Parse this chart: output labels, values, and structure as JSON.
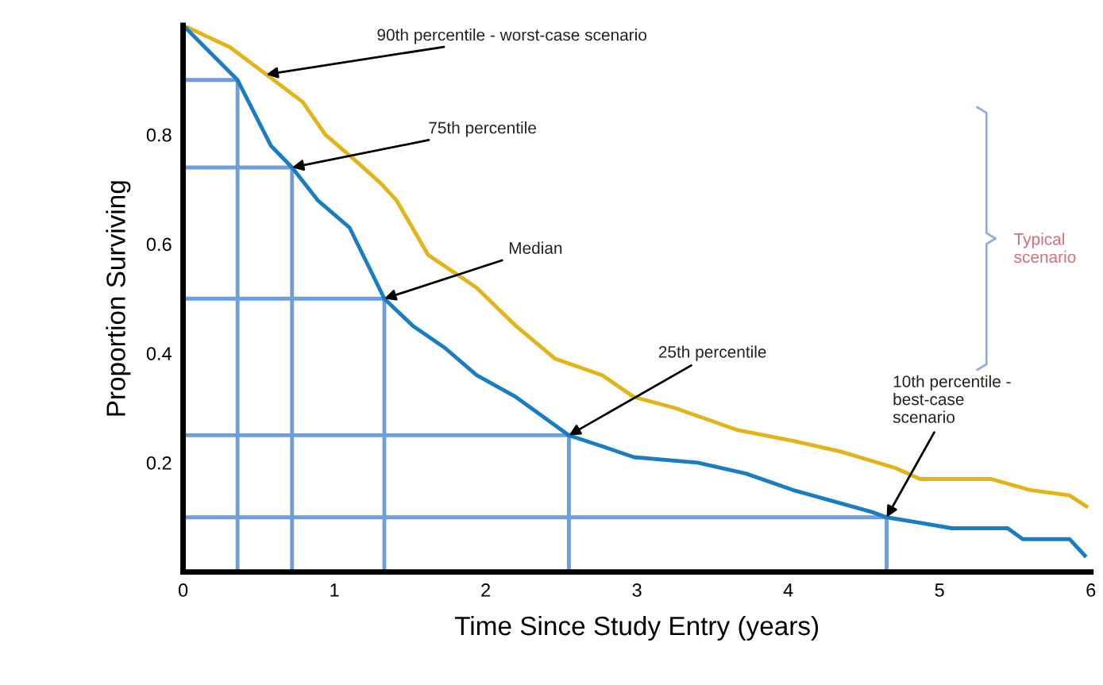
{
  "chart_data": {
    "type": "line",
    "xlabel": "Time Since Study Entry (years)",
    "ylabel": "Proportion Surviving",
    "xlim": [
      0,
      6
    ],
    "ylim": [
      0,
      1
    ],
    "xticks": [
      0,
      1,
      2,
      3,
      4,
      5,
      6
    ],
    "yticks": [
      0.2,
      0.4,
      0.6,
      0.8
    ],
    "grid": false,
    "legend": false,
    "series": [
      {
        "color": "#6f9fd8",
        "x": [
          0,
          0.36,
          0.36
        ],
        "values": [
          0.9,
          0.9,
          0
        ]
      },
      {
        "color": "#6f9fd8",
        "x": [
          0,
          0.72,
          0.72
        ],
        "values": [
          0.74,
          0.74,
          0
        ]
      },
      {
        "color": "#6f9fd8",
        "x": [
          0,
          1.33,
          1.33
        ],
        "values": [
          0.5,
          0.5,
          0
        ]
      },
      {
        "color": "#6f9fd8",
        "x": [
          0,
          2.55,
          2.55
        ],
        "values": [
          0.25,
          0.25,
          0
        ]
      },
      {
        "color": "#6f9fd8",
        "x": [
          0,
          4.65,
          4.65
        ],
        "values": [
          0.1,
          0.1,
          0
        ]
      },
      {
        "color": "#e3b31a",
        "x": [
          0,
          0.31,
          0.55,
          0.79,
          0.94,
          1.15,
          1.31,
          1.41,
          1.62,
          1.94,
          2.2,
          2.46,
          2.77,
          2.98,
          3.25,
          3.66,
          4.03,
          4.35,
          4.71,
          4.87,
          5.34,
          5.6,
          5.86,
          5.97
        ],
        "values": [
          1.0,
          0.96,
          0.91,
          0.86,
          0.8,
          0.75,
          0.71,
          0.68,
          0.58,
          0.52,
          0.45,
          0.39,
          0.36,
          0.32,
          0.3,
          0.26,
          0.24,
          0.22,
          0.19,
          0.17,
          0.17,
          0.15,
          0.14,
          0.12
        ]
      },
      {
        "color": "#1a7cc1",
        "x": [
          0,
          0.36,
          0.58,
          0.72,
          0.89,
          1.1,
          1.26,
          1.33,
          1.52,
          1.73,
          1.94,
          2.2,
          2.55,
          2.77,
          2.98,
          3.4,
          3.72,
          4.03,
          4.29,
          4.55,
          4.65,
          4.87,
          5.08,
          5.45,
          5.55,
          5.86,
          5.96
        ],
        "values": [
          1.0,
          0.9,
          0.78,
          0.74,
          0.68,
          0.63,
          0.54,
          0.5,
          0.45,
          0.41,
          0.36,
          0.32,
          0.25,
          0.23,
          0.21,
          0.2,
          0.18,
          0.15,
          0.13,
          0.11,
          0.1,
          0.09,
          0.08,
          0.08,
          0.06,
          0.06,
          0.03
        ]
      }
    ],
    "annotations": [
      {
        "text": "90th percentile - worst-case scenario",
        "x": 0.55,
        "y": 0.91
      },
      {
        "text": "75th percentile",
        "x": 0.72,
        "y": 0.74
      },
      {
        "text": "Median",
        "x": 1.33,
        "y": 0.5
      },
      {
        "text": "25th percentile",
        "x": 2.55,
        "y": 0.25
      },
      {
        "text": "10th percentile -\nbest-case\nscenario",
        "x": 4.65,
        "y": 0.1
      },
      "Typical\nscenario"
    ]
  }
}
